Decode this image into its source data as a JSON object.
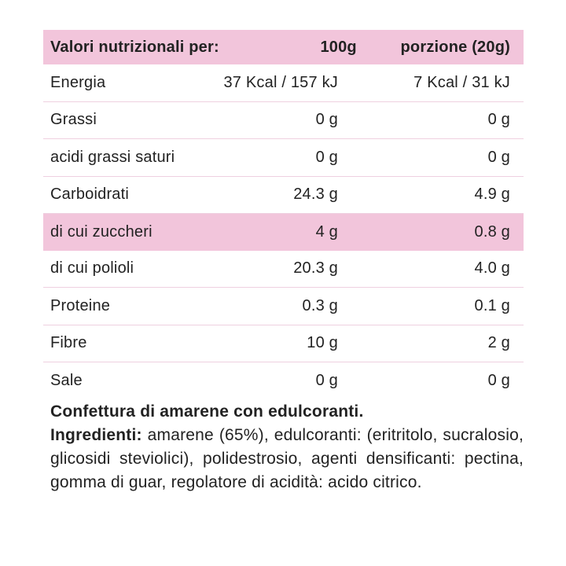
{
  "table": {
    "header": {
      "label": "Valori nutrizionali per:",
      "col_100g": "100g",
      "col_portion": "porzione (20g)"
    },
    "rows": [
      {
        "label": "Energia",
        "per_100g": "37 Kcal / 157 kJ",
        "per_portion": "7 Kcal / 31 kJ"
      },
      {
        "label": "Grassi",
        "per_100g": "0 g",
        "per_portion": "0 g"
      },
      {
        "label": "acidi grassi saturi",
        "per_100g": "0 g",
        "per_portion": "0 g"
      },
      {
        "label": "Carboidrati",
        "per_100g": "24.3 g",
        "per_portion": "4.9 g"
      },
      {
        "label": "di cui zuccheri",
        "per_100g": "4 g",
        "per_portion": "0.8 g",
        "highlighted": true
      },
      {
        "label": "di cui polioli",
        "per_100g": "20.3 g",
        "per_portion": "4.0 g"
      },
      {
        "label": "Proteine",
        "per_100g": "0.3 g",
        "per_portion": "0.1 g"
      },
      {
        "label": "Fibre",
        "per_100g": "10 g",
        "per_portion": "2 g"
      },
      {
        "label": "Sale",
        "per_100g": "0 g",
        "per_portion": "0 g"
      }
    ]
  },
  "description": {
    "title": "Confettura di amarene con edulcoranti.",
    "ingredients_label": "Ingredienti:",
    "ingredients_text": "amarene (65%), edulcoranti: (eritritolo, sucralosio, glicosidi steviolici), polidestrosio, agenti densificanti: pectina, gomma di guar, regolatore di acidità: acido citrico."
  },
  "colors": {
    "highlight_pink": "#F2C5DB",
    "divider_pink": "#EFD0E0",
    "text": "#222222",
    "background": "#FFFFFF"
  }
}
